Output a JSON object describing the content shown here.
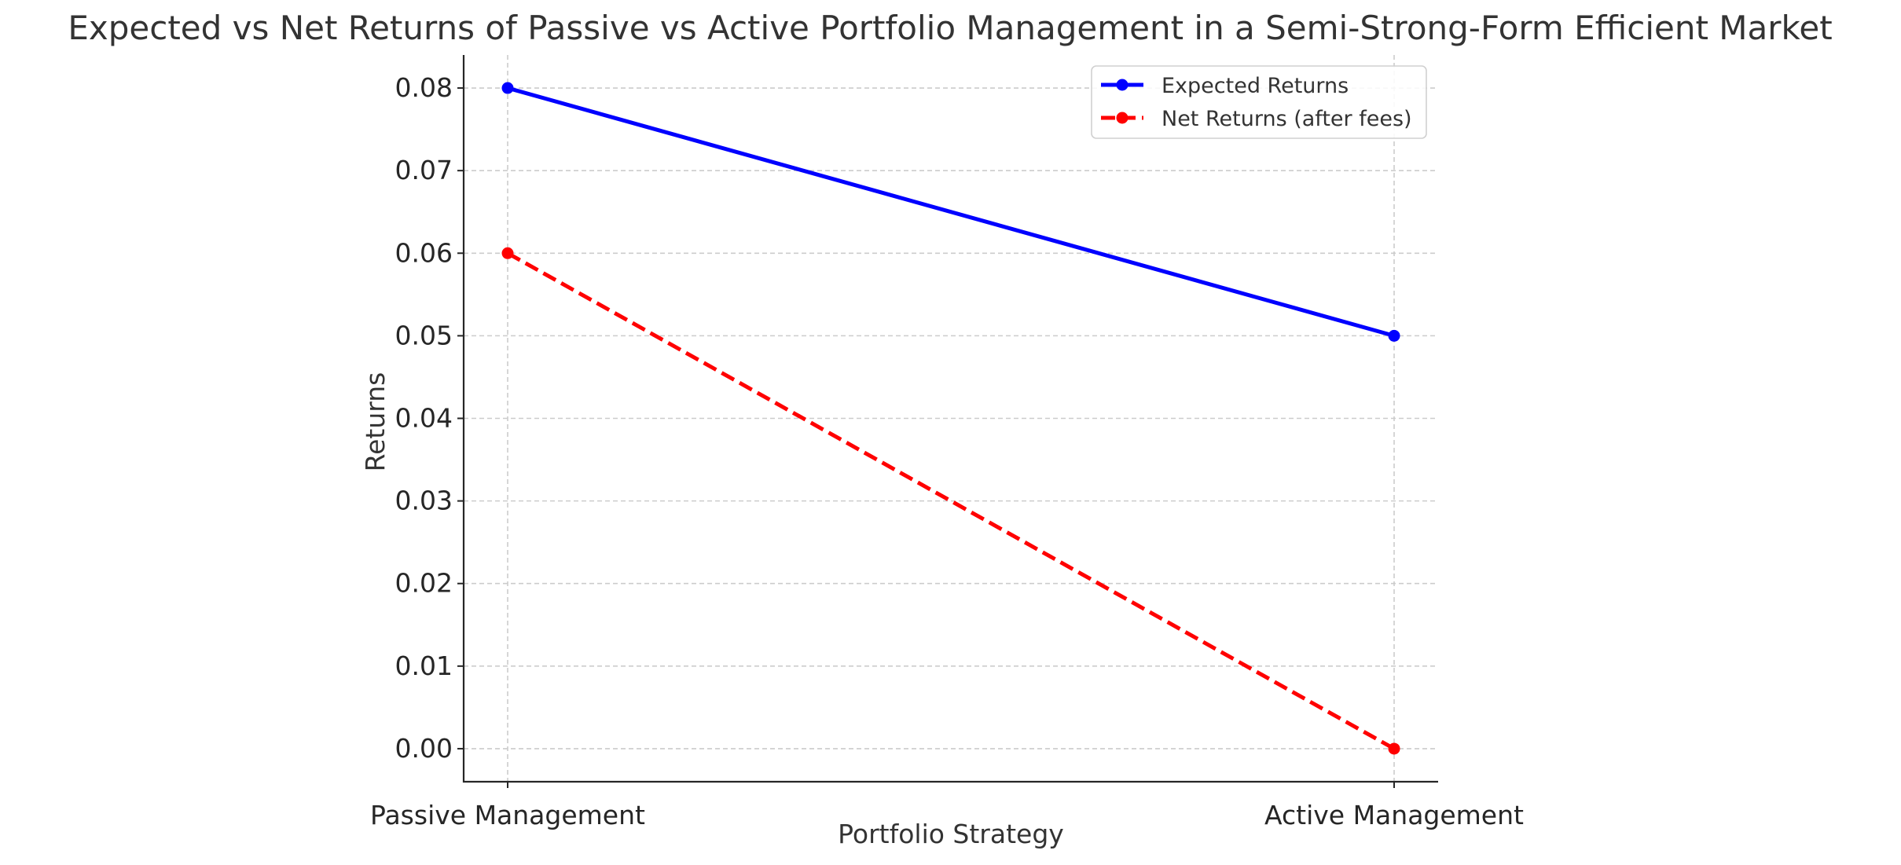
{
  "chart_data": {
    "type": "line",
    "title": "Expected vs Net Returns of Passive vs Active Portfolio Management in a Semi-Strong-Form Efficient Market",
    "xlabel": "Portfolio Strategy",
    "ylabel": "Returns",
    "categories": [
      "Passive Management",
      "Active Management"
    ],
    "ylim": [
      -0.004,
      0.084
    ],
    "yticks": [
      0.0,
      0.01,
      0.02,
      0.03,
      0.04,
      0.05,
      0.06,
      0.07,
      0.08
    ],
    "ytick_labels": [
      "0.00",
      "0.01",
      "0.02",
      "0.03",
      "0.04",
      "0.05",
      "0.06",
      "0.07",
      "0.08"
    ],
    "grid": true,
    "legend_position": "top-right",
    "series": [
      {
        "name": "Expected Returns",
        "values": [
          0.08,
          0.05
        ],
        "color": "#0000ff",
        "line_style": "solid",
        "marker": "circle"
      },
      {
        "name": "Net Returns (after fees)",
        "values": [
          0.06,
          0.0
        ],
        "color": "#ff0000",
        "line_style": "dashed",
        "marker": "circle"
      }
    ]
  }
}
